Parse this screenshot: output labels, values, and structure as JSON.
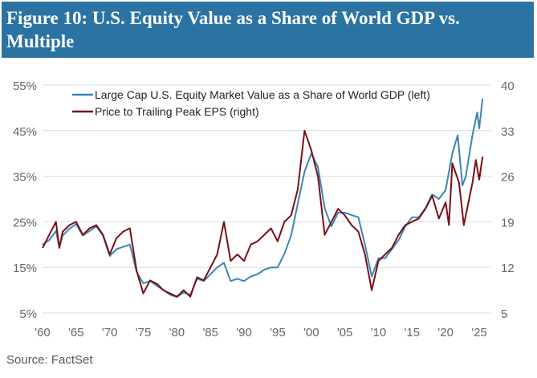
{
  "title": "Figure 10: U.S. Equity Value as a Share of World GDP vs. Multiple",
  "source": "Source: FactSet",
  "chart_data": {
    "type": "line",
    "title": "Figure 10: U.S. Equity Value as a Share of World GDP vs. Multiple",
    "x_ticks": [
      "'60",
      "'65",
      "'70",
      "'75",
      "'80",
      "'85",
      "'90",
      "'95",
      "'00",
      "'05",
      "'10",
      "'15",
      "'20",
      "'25"
    ],
    "x_tick_values": [
      1960,
      1965,
      1970,
      1975,
      1980,
      1985,
      1990,
      1995,
      2000,
      2005,
      2010,
      2015,
      2020,
      2025
    ],
    "xlim": [
      1960,
      2025.5
    ],
    "left_axis": {
      "ylim": [
        5,
        55
      ],
      "ticks": [
        "55%",
        "45%",
        "35%",
        "25%",
        "15%",
        "5%"
      ],
      "tick_values": [
        55,
        45,
        35,
        25,
        15,
        5
      ]
    },
    "right_axis": {
      "ylim": [
        5,
        40
      ],
      "ticks": [
        "40",
        "33",
        "26",
        "19",
        "12",
        "5"
      ],
      "tick_values": [
        40,
        33,
        26,
        19,
        12,
        5
      ]
    },
    "grid": true,
    "legend_placement": "top-left",
    "series": [
      {
        "name": "Large Cap U.S. Equity Market Value as a Share of World GDP (left)",
        "axis": "left",
        "color": "#3a86b4",
        "x": [
          1960,
          1961,
          1962,
          1962.5,
          1963,
          1964,
          1965,
          1966,
          1967,
          1968,
          1969,
          1970,
          1971,
          1972,
          1973,
          1974,
          1975,
          1976,
          1977,
          1978,
          1979,
          1980,
          1981,
          1982,
          1983,
          1984,
          1985,
          1986,
          1987,
          1988,
          1989,
          1990,
          1991,
          1992,
          1993,
          1994,
          1995,
          1996,
          1997,
          1998,
          1999,
          2000,
          2001,
          2002,
          2003,
          2004,
          2005,
          2006,
          2007,
          2008,
          2009,
          2010,
          2011,
          2012,
          2013,
          2014,
          2015,
          2016,
          2017,
          2018,
          2019,
          2020,
          2021,
          2021.8,
          2022.5,
          2023,
          2024,
          2024.7,
          2025,
          2025.5
        ],
        "y": [
          20,
          21,
          23,
          19.5,
          22,
          23.5,
          24.5,
          22,
          23,
          24,
          22,
          17.5,
          19,
          19.5,
          20,
          14,
          11.5,
          12,
          11,
          10,
          9,
          8.5,
          9.5,
          9,
          12.5,
          12,
          13.5,
          15,
          16,
          12,
          12.5,
          12,
          13,
          13.5,
          14.5,
          15,
          15,
          18,
          22,
          29,
          36,
          40,
          37,
          28,
          24,
          27,
          27,
          26.5,
          26,
          20,
          13,
          17,
          17,
          19,
          21,
          24,
          26,
          26,
          28,
          31,
          30,
          32,
          40,
          44,
          33,
          35,
          44,
          49,
          45.5,
          52
        ]
      },
      {
        "name": "Price to Trailing Peak EPS (right)",
        "axis": "right",
        "color": "#7a0f12",
        "x": [
          1960,
          1961,
          1962,
          1962.5,
          1963,
          1964,
          1965,
          1966,
          1967,
          1968,
          1969,
          1970,
          1971,
          1972,
          1973,
          1974,
          1975,
          1976,
          1977,
          1978,
          1979,
          1980,
          1981,
          1982,
          1983,
          1984,
          1985,
          1986,
          1987,
          1988,
          1989,
          1990,
          1991,
          1992,
          1993,
          1994,
          1995,
          1996,
          1997,
          1998,
          1999,
          2000,
          2001,
          2002,
          2003,
          2004,
          2005,
          2006,
          2007,
          2008,
          2009,
          2010,
          2011,
          2012,
          2013,
          2014,
          2015,
          2016,
          2017,
          2018,
          2019,
          2020,
          2020.5,
          2021,
          2022,
          2022.7,
          2023,
          2024,
          2024.5,
          2025,
          2025.5
        ],
        "y": [
          15,
          17,
          19,
          15,
          17.5,
          18.5,
          19,
          17,
          18,
          18.5,
          17,
          14,
          16.5,
          17.5,
          18,
          11.5,
          8,
          10,
          9.5,
          8.5,
          8,
          7.5,
          8.5,
          7.5,
          10.5,
          10,
          12,
          14,
          19,
          13,
          14,
          13,
          15.5,
          16,
          17,
          18,
          16,
          19,
          20,
          24,
          33,
          30,
          26,
          17,
          19,
          21,
          20,
          18.5,
          17.5,
          14,
          8.5,
          13,
          14,
          15,
          17,
          18.5,
          19,
          19.5,
          21,
          23,
          19.5,
          22,
          18.5,
          28,
          25,
          18.5,
          20,
          25,
          28.5,
          25.5,
          29
        ]
      }
    ]
  }
}
